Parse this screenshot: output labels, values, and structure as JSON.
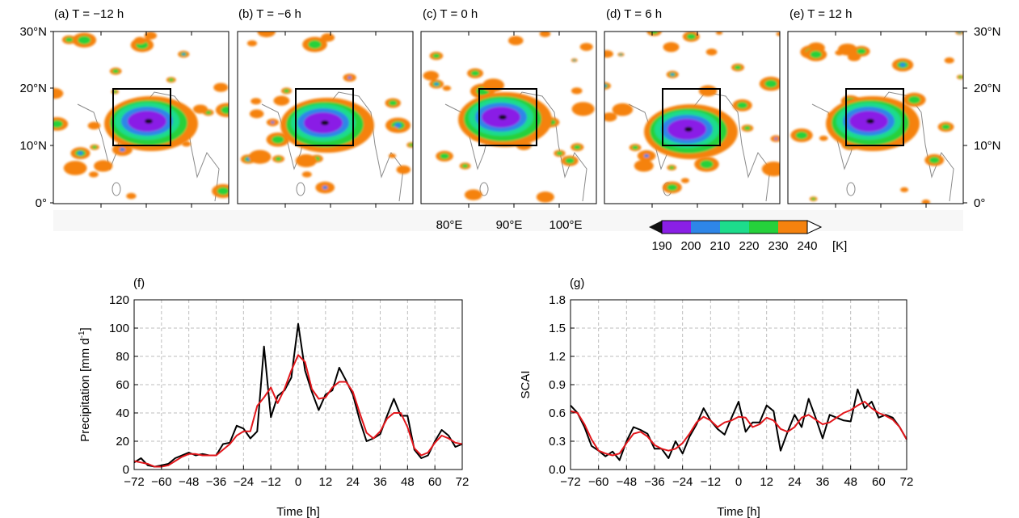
{
  "maps": {
    "panels": [
      {
        "label": "(a) T = −12 h"
      },
      {
        "label": "(b) T = −6 h"
      },
      {
        "label": "(c) T = 0 h"
      },
      {
        "label": "(d) T = 6 h"
      },
      {
        "label": "(e) T = 12 h"
      }
    ],
    "lat_ticks": [
      "30°N",
      "20°N",
      "10°N",
      "0°"
    ],
    "lon_ticks": [
      "80°E",
      "90°E",
      "100°E"
    ],
    "colorbar": {
      "ticks": [
        "190",
        "200",
        "210",
        "220",
        "230",
        "240"
      ],
      "unit": "[K]",
      "colors": [
        "#8a1fe6",
        "#2e86e8",
        "#1ddc8c",
        "#25d13b",
        "#f5820e"
      ]
    }
  },
  "chart_data": [
    {
      "type": "line",
      "panel_label": "(f)",
      "xlabel": "Time [h]",
      "ylabel": "Precipitation [mm d",
      "ylabel_sup": "-1",
      "ylabel_close": "]",
      "xlim": [
        -72,
        72
      ],
      "ylim": [
        0,
        120
      ],
      "xticks": [
        -72,
        -60,
        -48,
        -36,
        -24,
        -12,
        0,
        12,
        24,
        36,
        48,
        60,
        72
      ],
      "xtick_labels": [
        "−72",
        "−60",
        "−48",
        "−36",
        "−24",
        "−12",
        "0",
        "12",
        "24",
        "36",
        "48",
        "60",
        "72"
      ],
      "yticks": [
        0,
        20,
        40,
        60,
        80,
        100,
        120
      ],
      "ytick_labels": [
        "0",
        "20",
        "40",
        "60",
        "80",
        "100",
        "120"
      ],
      "grid": true,
      "series": [
        {
          "color": "#000000",
          "x": [
            -72,
            -69,
            -66,
            -63,
            -60,
            -57,
            -54,
            -51,
            -48,
            -45,
            -42,
            -39,
            -36,
            -33,
            -30,
            -27,
            -24,
            -21,
            -18,
            -15,
            -12,
            -9,
            -6,
            -3,
            0,
            3,
            6,
            9,
            12,
            15,
            18,
            21,
            24,
            27,
            30,
            33,
            36,
            39,
            42,
            45,
            48,
            51,
            54,
            57,
            60,
            63,
            66,
            69,
            72
          ],
          "y": [
            5,
            8,
            3,
            2,
            3,
            4,
            8,
            10,
            12,
            10,
            11,
            10,
            10,
            18,
            19,
            31,
            29,
            22,
            27,
            87,
            37,
            52,
            56,
            65,
            103,
            70,
            55,
            42,
            53,
            56,
            72,
            63,
            53,
            35,
            20,
            22,
            25,
            38,
            50,
            38,
            38,
            14,
            8,
            10,
            20,
            28,
            24,
            16,
            18
          ]
        },
        {
          "color": "#e3161b",
          "x": [
            -72,
            -69,
            -66,
            -63,
            -60,
            -57,
            -54,
            -51,
            -48,
            -45,
            -42,
            -39,
            -36,
            -33,
            -30,
            -27,
            -24,
            -21,
            -18,
            -15,
            -12,
            -9,
            -6,
            -3,
            0,
            3,
            6,
            9,
            12,
            15,
            18,
            21,
            24,
            27,
            30,
            33,
            36,
            39,
            42,
            45,
            48,
            51,
            54,
            57,
            60,
            63,
            66,
            69,
            72
          ],
          "y": [
            6,
            5,
            4,
            2,
            2,
            3,
            6,
            9,
            11,
            11,
            10,
            10,
            10,
            14,
            18,
            24,
            27,
            27,
            45,
            51,
            58,
            47,
            57,
            70,
            81,
            76,
            57,
            50,
            51,
            58,
            62,
            62,
            55,
            40,
            26,
            22,
            27,
            36,
            40,
            40,
            30,
            15,
            10,
            12,
            19,
            24,
            22,
            19,
            18
          ]
        }
      ]
    },
    {
      "type": "line",
      "panel_label": "(g)",
      "xlabel": "Time [h]",
      "ylabel": "SCAI",
      "xlim": [
        -72,
        72
      ],
      "ylim": [
        0,
        1.8
      ],
      "xticks": [
        -72,
        -60,
        -48,
        -36,
        -24,
        -12,
        0,
        12,
        24,
        36,
        48,
        60,
        72
      ],
      "xtick_labels": [
        "−72",
        "−60",
        "−48",
        "−36",
        "−24",
        "−12",
        "0",
        "12",
        "24",
        "36",
        "48",
        "60",
        "72"
      ],
      "yticks": [
        0,
        0.3,
        0.6,
        0.9,
        1.2,
        1.5,
        1.8
      ],
      "ytick_labels": [
        "0.0",
        "0.3",
        "0.6",
        "0.9",
        "1.2",
        "1.5",
        "1.8"
      ],
      "grid": true,
      "series": [
        {
          "color": "#000000",
          "x": [
            -72,
            -69,
            -66,
            -63,
            -60,
            -57,
            -54,
            -51,
            -48,
            -45,
            -42,
            -39,
            -36,
            -33,
            -30,
            -27,
            -24,
            -21,
            -18,
            -15,
            -12,
            -9,
            -6,
            -3,
            0,
            3,
            6,
            9,
            12,
            15,
            18,
            21,
            24,
            27,
            30,
            33,
            36,
            39,
            42,
            45,
            48,
            51,
            54,
            57,
            60,
            63,
            66,
            69,
            72
          ],
          "y": [
            0.68,
            0.6,
            0.45,
            0.25,
            0.2,
            0.14,
            0.19,
            0.1,
            0.3,
            0.45,
            0.42,
            0.38,
            0.22,
            0.22,
            0.12,
            0.3,
            0.17,
            0.35,
            0.48,
            0.65,
            0.52,
            0.43,
            0.37,
            0.55,
            0.72,
            0.4,
            0.5,
            0.5,
            0.68,
            0.62,
            0.2,
            0.4,
            0.58,
            0.45,
            0.75,
            0.55,
            0.33,
            0.58,
            0.55,
            0.52,
            0.51,
            0.85,
            0.65,
            0.72,
            0.55,
            0.58,
            0.55,
            0.45,
            0.32
          ]
        },
        {
          "color": "#e3161b",
          "x": [
            -72,
            -69,
            -66,
            -63,
            -60,
            -57,
            -54,
            -51,
            -48,
            -45,
            -42,
            -39,
            -36,
            -33,
            -30,
            -27,
            -24,
            -21,
            -18,
            -15,
            -12,
            -9,
            -6,
            -3,
            0,
            3,
            6,
            9,
            12,
            15,
            18,
            21,
            24,
            27,
            30,
            33,
            36,
            39,
            42,
            45,
            48,
            51,
            54,
            57,
            60,
            63,
            66,
            69,
            72
          ],
          "y": [
            0.62,
            0.6,
            0.48,
            0.32,
            0.2,
            0.17,
            0.15,
            0.17,
            0.28,
            0.38,
            0.4,
            0.35,
            0.26,
            0.22,
            0.2,
            0.22,
            0.28,
            0.38,
            0.5,
            0.56,
            0.52,
            0.45,
            0.5,
            0.52,
            0.56,
            0.55,
            0.45,
            0.48,
            0.55,
            0.52,
            0.43,
            0.4,
            0.45,
            0.55,
            0.58,
            0.53,
            0.48,
            0.5,
            0.55,
            0.6,
            0.63,
            0.68,
            0.72,
            0.65,
            0.6,
            0.57,
            0.53,
            0.45,
            0.32
          ]
        }
      ]
    }
  ]
}
